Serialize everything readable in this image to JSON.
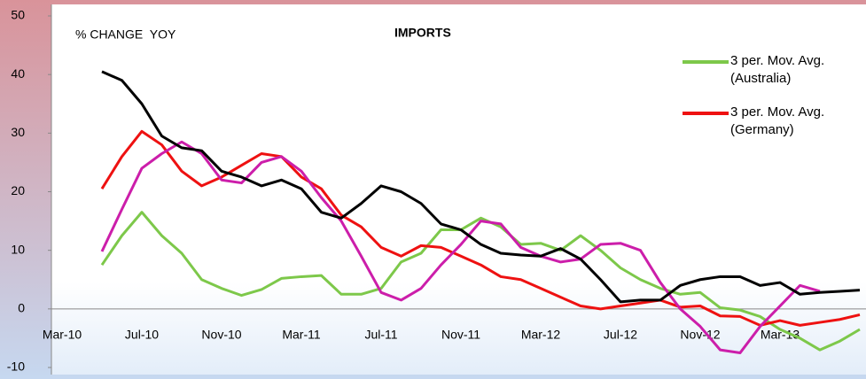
{
  "chart_data": {
    "type": "line",
    "title": "IMPORTS",
    "y_label": "% CHANGE  YOY",
    "categories": [
      "Mar-10",
      null,
      null,
      null,
      "Jul-10",
      null,
      null,
      null,
      "Nov-10",
      null,
      null,
      null,
      "Mar-11",
      null,
      null,
      null,
      "Jul-11",
      null,
      null,
      null,
      "Nov-11",
      null,
      null,
      null,
      "Mar-12",
      null,
      null,
      null,
      "Jul-12",
      null,
      null,
      null,
      "Nov-12",
      null,
      null,
      null,
      "Mar-13",
      null,
      null,
      null,
      null
    ],
    "series": [
      {
        "name": "3 per. Mov. Avg.\n(Australia)",
        "color": "#7dc84a",
        "values": [
          null,
          null,
          7.5,
          12.5,
          16.5,
          12.5,
          9.5,
          5,
          3.5,
          2.3,
          3.3,
          5.2,
          5.5,
          5.7,
          2.5,
          2.5,
          3.5,
          8,
          9.5,
          13.5,
          13.5,
          15.5,
          14,
          11,
          11.2,
          10,
          12.5,
          10,
          7,
          5,
          3.5,
          2.5,
          2.8,
          0.2,
          -0.2,
          -1.3,
          -3.5,
          -5,
          -7,
          -5.5,
          -3.5
        ]
      },
      {
        "name": "3 per. Mov. Avg.\n(Germany)",
        "color": "#ee1111",
        "values": [
          null,
          null,
          20.5,
          26,
          30.3,
          28,
          23.5,
          21,
          22.5,
          24.5,
          26.5,
          26,
          22.5,
          20.5,
          16,
          14,
          10.5,
          9,
          10.8,
          10.5,
          9,
          7.5,
          5.5,
          5,
          3.5,
          2,
          0.5,
          0,
          0.5,
          1,
          1.5,
          0.3,
          0.5,
          -1.2,
          -1.3,
          -2.8,
          -2,
          -2.8,
          -2.3,
          -1.8,
          -1
        ]
      },
      {
        "color": "#cc1eaa",
        "values": [
          null,
          null,
          9.8,
          17,
          24,
          26.5,
          28.5,
          26.5,
          22,
          21.5,
          25,
          26,
          23.5,
          19,
          15,
          9,
          2.8,
          1.5,
          3.5,
          7.5,
          11,
          15,
          14.5,
          10.5,
          9,
          8,
          8.5,
          11,
          11.2,
          10,
          4.5,
          0,
          -3,
          -7,
          -7.5,
          -3,
          0.5,
          4,
          3,
          null,
          null
        ]
      },
      {
        "color": "#000000",
        "values": [
          null,
          null,
          40.5,
          39,
          35,
          29.5,
          27.5,
          27,
          23.5,
          22.5,
          21,
          22,
          20.5,
          16.5,
          15.5,
          18,
          21,
          20,
          18,
          14.5,
          13.5,
          11,
          9.5,
          9.2,
          9,
          10.3,
          8.5,
          5,
          1.2,
          1.5,
          1.5,
          4,
          5,
          5.5,
          5.5,
          4,
          4.5,
          2.5,
          2.8,
          3,
          3.2
        ]
      }
    ],
    "ylim": [
      -10,
      50
    ],
    "yticks": [
      -10,
      0,
      10,
      20,
      30,
      40,
      50
    ],
    "legend": "top right"
  }
}
